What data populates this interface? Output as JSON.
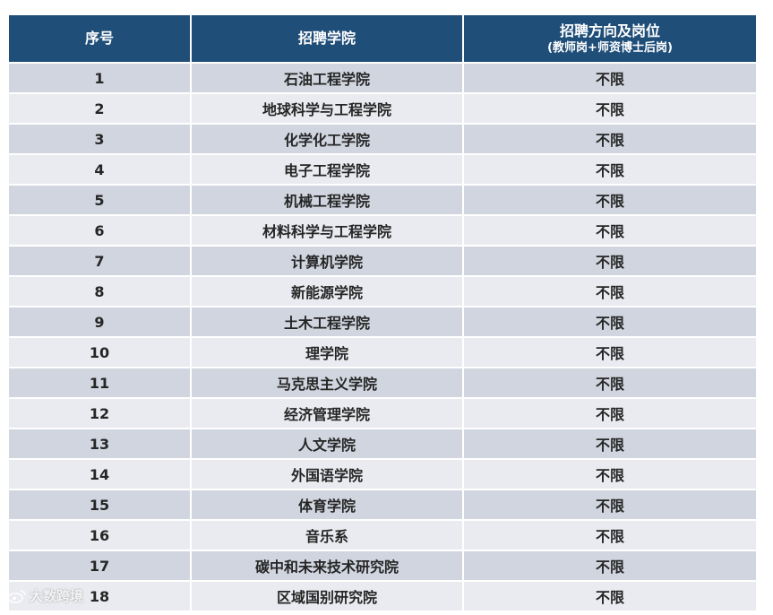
{
  "table": {
    "headers": {
      "number": "序号",
      "school": "招聘学院",
      "post": "招聘方向及岗位",
      "post_sub": "(教师岗+师资博士后岗)"
    },
    "rows": [
      {
        "num": "1",
        "school": "石油工程学院",
        "post": "不限"
      },
      {
        "num": "2",
        "school": "地球科学与工程学院",
        "post": "不限"
      },
      {
        "num": "3",
        "school": "化学化工学院",
        "post": "不限"
      },
      {
        "num": "4",
        "school": "电子工程学院",
        "post": "不限"
      },
      {
        "num": "5",
        "school": "机械工程学院",
        "post": "不限"
      },
      {
        "num": "6",
        "school": "材料科学与工程学院",
        "post": "不限"
      },
      {
        "num": "7",
        "school": "计算机学院",
        "post": "不限"
      },
      {
        "num": "8",
        "school": "新能源学院",
        "post": "不限"
      },
      {
        "num": "9",
        "school": "土木工程学院",
        "post": "不限"
      },
      {
        "num": "10",
        "school": "理学院",
        "post": "不限"
      },
      {
        "num": "11",
        "school": "马克思主义学院",
        "post": "不限"
      },
      {
        "num": "12",
        "school": "经济管理学院",
        "post": "不限"
      },
      {
        "num": "13",
        "school": "人文学院",
        "post": "不限"
      },
      {
        "num": "14",
        "school": "外国语学院",
        "post": "不限"
      },
      {
        "num": "15",
        "school": "体育学院",
        "post": "不限"
      },
      {
        "num": "16",
        "school": "音乐系",
        "post": "不限"
      },
      {
        "num": "17",
        "school": "碳中和未来技术研究院",
        "post": "不限"
      },
      {
        "num": "18",
        "school": "区域国别研究院",
        "post": "不限"
      }
    ]
  },
  "watermark": {
    "icon": "weibo-logo-icon",
    "text": "大数跨境"
  },
  "colors": {
    "header_bg": "#1f4e79",
    "row_odd": "#d0d5df",
    "row_even": "#e9ebf0"
  }
}
